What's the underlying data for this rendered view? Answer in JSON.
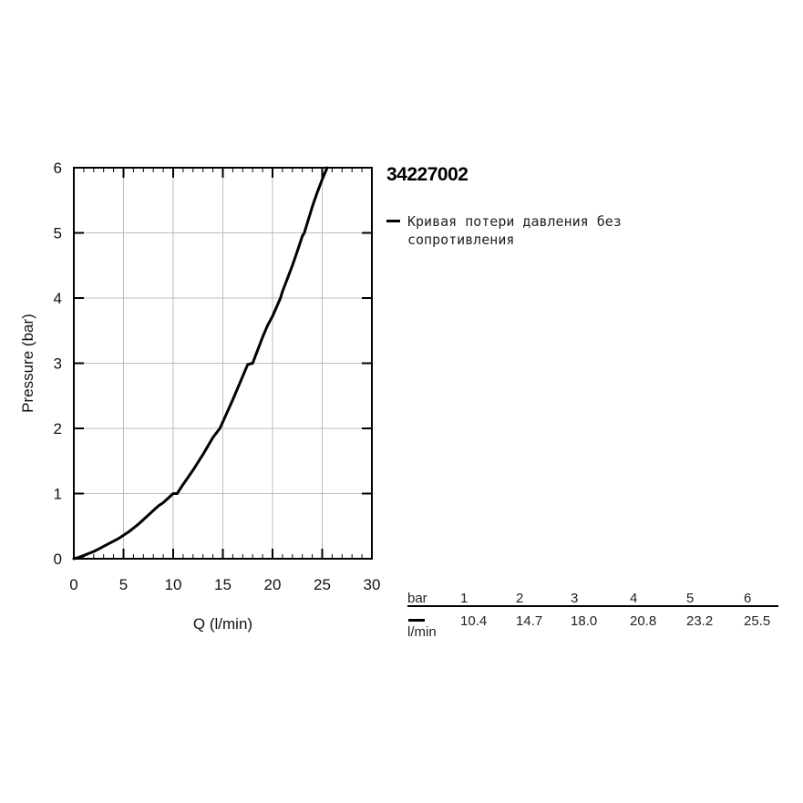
{
  "product_code": "34227002",
  "legend": {
    "label": "Кривая потери давления без сопротивления"
  },
  "chart_data": {
    "type": "line",
    "xlabel": "Q (l/min)",
    "ylabel": "Pressure (bar)",
    "xlim": [
      0,
      30
    ],
    "ylim": [
      0,
      6
    ],
    "xticks": [
      0,
      5,
      10,
      15,
      20,
      25,
      30
    ],
    "yticks": [
      0,
      1,
      2,
      3,
      4,
      5,
      6
    ],
    "grid": true,
    "line_color": "#000000",
    "series": [
      {
        "x": [
          0,
          0.5,
          1,
          1.5,
          2,
          2.5,
          3,
          3.5,
          4,
          4.5,
          5,
          5.5,
          6,
          6.5,
          7,
          7.5,
          8,
          8.5,
          9,
          9.5,
          10,
          10.4,
          11,
          11.5,
          12,
          12.5,
          13,
          13.5,
          14,
          14.7,
          15,
          15.5,
          16,
          16.5,
          17,
          17.5,
          18,
          18.5,
          19,
          19.5,
          20,
          20.8,
          21,
          21.5,
          22,
          22.5,
          23,
          23.2,
          23.5,
          24,
          24.5,
          25,
          25.5
        ],
        "y": [
          0,
          0.02,
          0.05,
          0.08,
          0.11,
          0.15,
          0.19,
          0.23,
          0.27,
          0.31,
          0.36,
          0.41,
          0.47,
          0.53,
          0.6,
          0.67,
          0.74,
          0.81,
          0.86,
          0.93,
          1.0,
          1.0,
          1.14,
          1.25,
          1.36,
          1.48,
          1.6,
          1.73,
          1.86,
          2.0,
          2.1,
          2.27,
          2.44,
          2.62,
          2.8,
          2.98,
          3.0,
          3.2,
          3.4,
          3.58,
          3.72,
          4.0,
          4.1,
          4.3,
          4.5,
          4.72,
          4.95,
          5.0,
          5.15,
          5.4,
          5.62,
          5.82,
          6.0
        ]
      }
    ]
  },
  "flow_table": {
    "header_label": "bar",
    "unit_label": "l/min",
    "pressures": [
      "1",
      "2",
      "3",
      "4",
      "5",
      "6"
    ],
    "flows": [
      "10.4",
      "14.7",
      "18.0",
      "20.8",
      "23.2",
      "25.5"
    ]
  }
}
